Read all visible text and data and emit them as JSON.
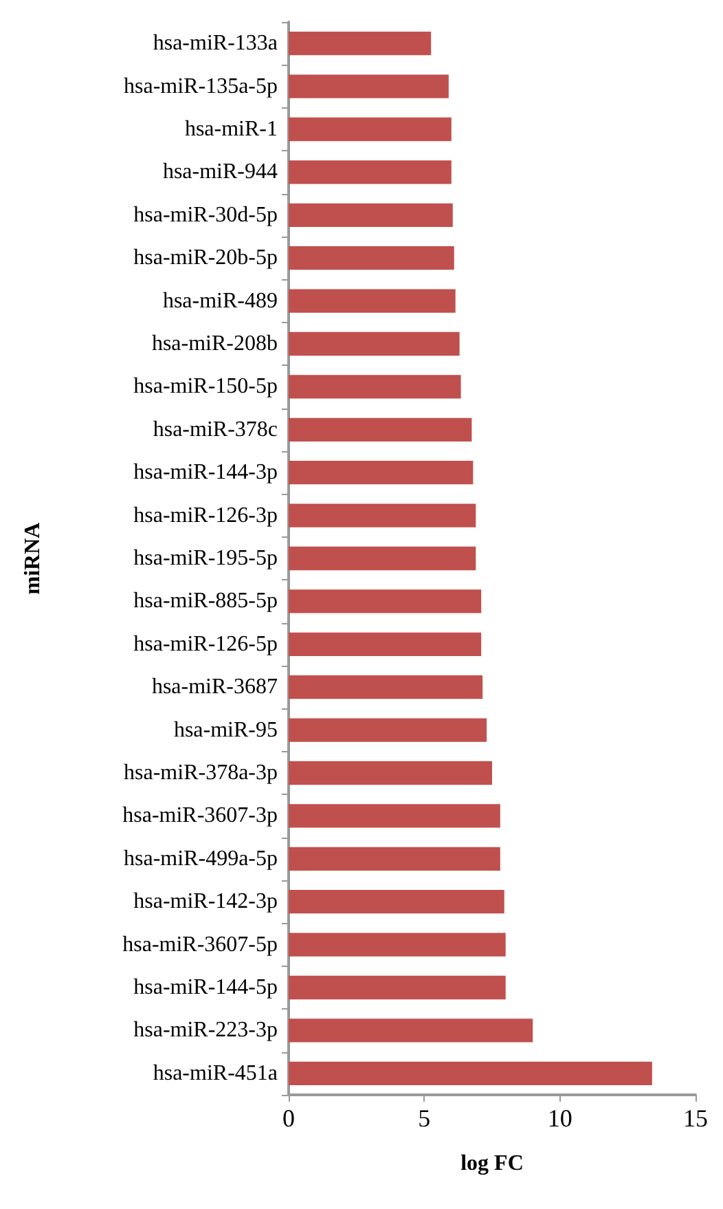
{
  "chart_data": {
    "type": "bar",
    "orientation": "horizontal",
    "xlabel": "log FC",
    "ylabel": "miRNA",
    "categories": [
      "hsa-miR-133a",
      "hsa-miR-135a-5p",
      "hsa-miR-1",
      "hsa-miR-944",
      "hsa-miR-30d-5p",
      "hsa-miR-20b-5p",
      "hsa-miR-489",
      "hsa-miR-208b",
      "hsa-miR-150-5p",
      "hsa-miR-378c",
      "hsa-miR-144-3p",
      "hsa-miR-126-3p",
      "hsa-miR-195-5p",
      "hsa-miR-885-5p",
      "hsa-miR-126-5p",
      "hsa-miR-3687",
      "hsa-miR-95",
      "hsa-miR-378a-3p",
      "hsa-miR-3607-3p",
      "hsa-miR-499a-5p",
      "hsa-miR-142-3p",
      "hsa-miR-3607-5p",
      "hsa-miR-144-5p",
      "hsa-miR-223-3p",
      "hsa-miR-451a"
    ],
    "values": [
      5.25,
      5.9,
      6.0,
      6.0,
      6.05,
      6.1,
      6.15,
      6.3,
      6.35,
      6.75,
      6.8,
      6.9,
      6.9,
      7.1,
      7.1,
      7.15,
      7.3,
      7.5,
      7.8,
      7.8,
      7.95,
      8.0,
      8.0,
      9.0,
      13.4
    ],
    "color": "#c0504d",
    "xlim": [
      0,
      15
    ],
    "xticks": [
      0,
      5,
      10,
      15
    ],
    "grid": false
  }
}
